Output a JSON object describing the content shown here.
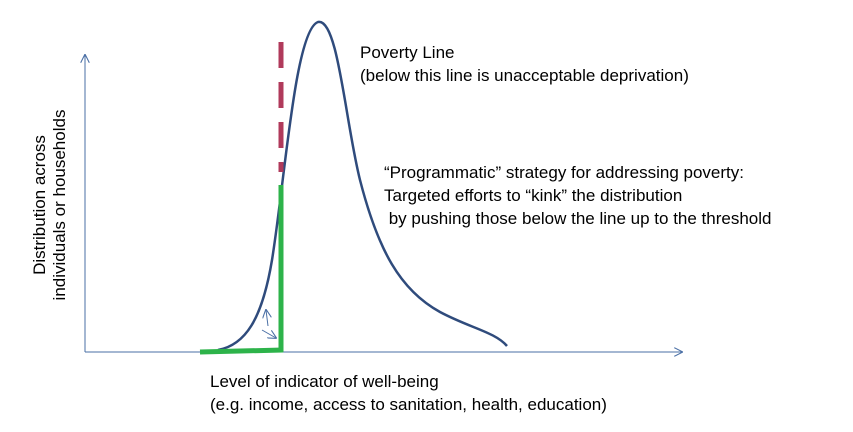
{
  "y_axis_label": [
    "Distribution across",
    "individuals or households"
  ],
  "poverty_line_label": [
    "Poverty Line",
    "(below this line is unacceptable deprivation)"
  ],
  "strategy_label": [
    "“Programmatic” strategy for addressing poverty:",
    "Targeted efforts to “kink” the distribution",
    " by pushing those below the line up to the threshold"
  ],
  "x_axis_label": [
    "Level of indicator of well-being",
    "(e.g. income, access to sanitation, health, education)"
  ]
}
